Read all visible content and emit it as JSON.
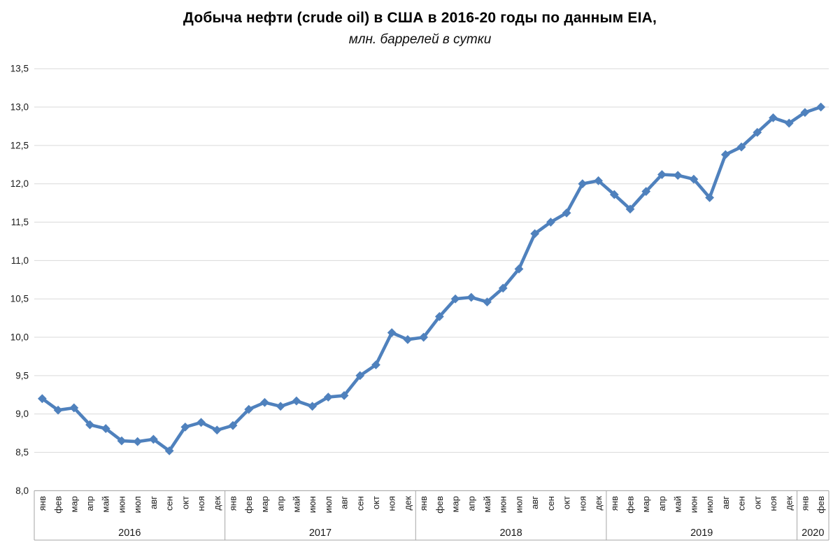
{
  "title": "Добыча нефти (crude oil) в США в 2016-20 годы по данным EIA,",
  "subtitle": "млн. баррелей в сутки",
  "chart_data": {
    "type": "line",
    "title": "Добыча нефти (crude oil) в США в 2016-20 годы по данным EIA,",
    "subtitle": "млн. баррелей в сутки",
    "ylabel": "",
    "xlabel": "",
    "ylim": [
      8.0,
      13.5
    ],
    "ytick_step": 0.5,
    "ytick_labels": [
      "13,5",
      "13,0",
      "12,5",
      "12,0",
      "11,5",
      "11,0",
      "10,5",
      "10,0",
      "9,5",
      "9,0",
      "8,5",
      "8,0"
    ],
    "grid": true,
    "legend_position": "none",
    "marker": "diamond",
    "month_labels": [
      "янв",
      "фев",
      "мар",
      "апр",
      "май",
      "июн",
      "июл",
      "авг",
      "сен",
      "окт",
      "ноя",
      "дек"
    ],
    "groups": [
      {
        "year": "2016",
        "months": 12
      },
      {
        "year": "2017",
        "months": 12
      },
      {
        "year": "2018",
        "months": 12
      },
      {
        "year": "2019",
        "months": 12
      },
      {
        "year": "2020",
        "months": 2
      }
    ],
    "series": [
      {
        "name": "Добыча нефти, млн. баррелей в сутки",
        "values": [
          9.2,
          9.05,
          9.08,
          8.86,
          8.81,
          8.65,
          8.64,
          8.67,
          8.52,
          8.83,
          8.89,
          8.79,
          8.85,
          9.06,
          9.15,
          9.1,
          9.17,
          9.1,
          9.22,
          9.24,
          9.5,
          9.64,
          10.06,
          9.97,
          10.0,
          10.27,
          10.5,
          10.52,
          10.46,
          10.64,
          10.89,
          11.35,
          11.5,
          11.62,
          12.0,
          12.04,
          11.86,
          11.67,
          11.9,
          12.12,
          12.11,
          12.06,
          11.82,
          12.38,
          12.48,
          12.67,
          12.86,
          12.79,
          12.93,
          13.0
        ]
      }
    ],
    "colors": {
      "line": "#4F81BD",
      "marker": "#4F81BD",
      "gridline": "#D9D9D9",
      "axis_box": "#A6A6A6",
      "tick_text": "#1a1a1a",
      "title_text": "#000000"
    }
  }
}
